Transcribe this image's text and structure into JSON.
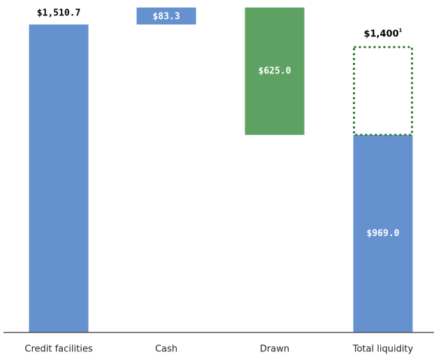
{
  "chart_data": {
    "type": "waterfall",
    "categories": [
      "Credit facilities",
      "Cash",
      "Drawn",
      "Total liquidity"
    ],
    "values": [
      1510.7,
      83.3,
      625.0,
      969.0
    ],
    "value_labels": [
      "$1,510.7",
      "$83.3",
      "$625.0",
      "$969.0"
    ],
    "kinds": [
      "total",
      "increase",
      "decrease",
      "total"
    ],
    "colors": [
      "#6691cf",
      "#6691cf",
      "#5ea263",
      "#6691cf"
    ],
    "label_position": [
      "above",
      "inside",
      "inside",
      "inside"
    ],
    "target": {
      "value": 1400,
      "label": "$1,400",
      "note": "1",
      "color": "#2e7d32"
    },
    "ylim": [
      0,
      1600
    ]
  }
}
